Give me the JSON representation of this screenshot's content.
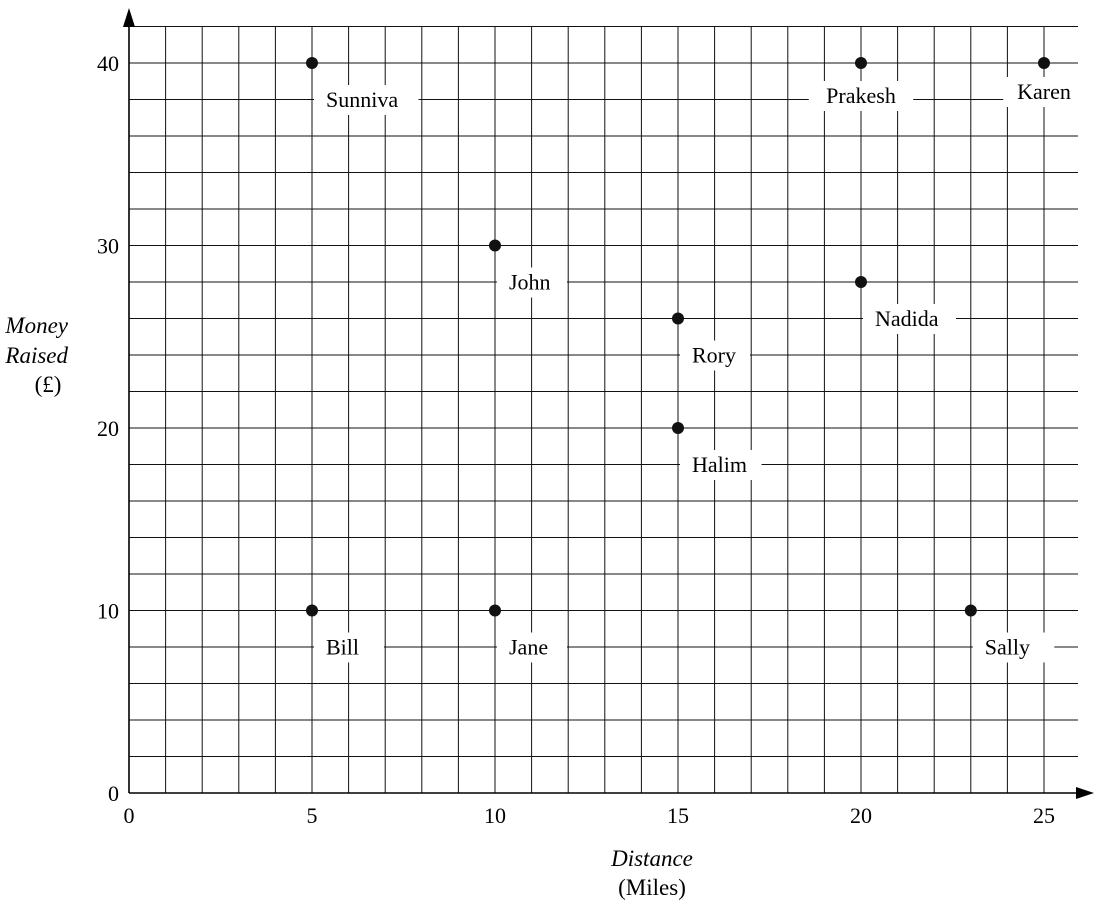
{
  "chart_data": {
    "type": "scatter",
    "title": "",
    "xlabel": "Distance",
    "xunit": "(Miles)",
    "ylabel_line1": "Money",
    "ylabel_line2": "Raised",
    "yunit": "(£)",
    "xlim": [
      0,
      26
    ],
    "ylim": [
      0,
      43
    ],
    "x_ticks": [
      0,
      5,
      10,
      15,
      20,
      25
    ],
    "y_ticks": [
      0,
      10,
      20,
      30,
      40
    ],
    "grid": true,
    "x_grid_step": 1,
    "y_grid_step": 2,
    "points": [
      {
        "label": "Sunniva",
        "x": 5,
        "y": 40
      },
      {
        "label": "Prakesh",
        "x": 20,
        "y": 40
      },
      {
        "label": "Karen",
        "x": 25,
        "y": 40
      },
      {
        "label": "John",
        "x": 10,
        "y": 30
      },
      {
        "label": "Nadida",
        "x": 20,
        "y": 28
      },
      {
        "label": "Rory",
        "x": 15,
        "y": 26
      },
      {
        "label": "Halim",
        "x": 15,
        "y": 20
      },
      {
        "label": "Bill",
        "x": 5,
        "y": 10
      },
      {
        "label": "Jane",
        "x": 10,
        "y": 10
      },
      {
        "label": "Sally",
        "x": 23,
        "y": 10
      }
    ]
  }
}
